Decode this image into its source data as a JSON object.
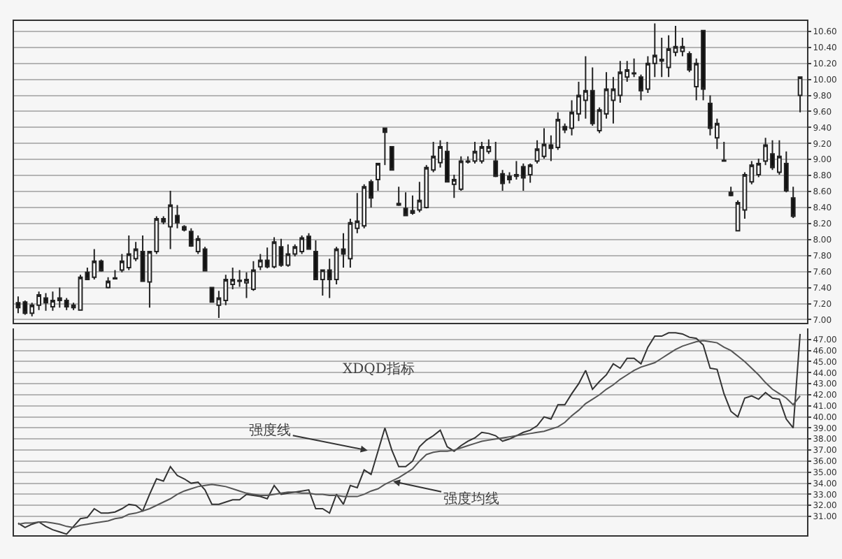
{
  "chart_data": [
    {
      "type": "candlestick",
      "categories": [
        null,
        null,
        null,
        null,
        null,
        null,
        null,
        null,
        null,
        null,
        null,
        null,
        null,
        null,
        null,
        null,
        null,
        null,
        null,
        null,
        null,
        null,
        null,
        null,
        null,
        null,
        null,
        null,
        null,
        null,
        null,
        null,
        null,
        null,
        null,
        null,
        null,
        null,
        null,
        null,
        null,
        null,
        null,
        null,
        null,
        null,
        null,
        null,
        null,
        null,
        null,
        null,
        null,
        null,
        null,
        null,
        null,
        null,
        null,
        null,
        null,
        null,
        null,
        null,
        null,
        null,
        null,
        null,
        null,
        null,
        null,
        null,
        null,
        null,
        null,
        null,
        null,
        null,
        null,
        null,
        null,
        null,
        null,
        null,
        null,
        null,
        null,
        null,
        null,
        null,
        null,
        null,
        null,
        null,
        null,
        null,
        null,
        null,
        null,
        null,
        null,
        null,
        null,
        null,
        null,
        null,
        null,
        null,
        null,
        null,
        null,
        null,
        null,
        null
      ],
      "ohlc": [
        [
          7.21,
          7.29,
          7.08,
          7.15
        ],
        [
          7.22,
          7.24,
          7.06,
          7.08
        ],
        [
          7.08,
          7.21,
          7.04,
          7.18
        ],
        [
          7.18,
          7.35,
          7.12,
          7.31
        ],
        [
          7.27,
          7.33,
          7.11,
          7.21
        ],
        [
          7.16,
          7.35,
          7.11,
          7.24
        ],
        [
          7.24,
          7.4,
          7.15,
          7.27
        ],
        [
          7.24,
          7.27,
          7.12,
          7.16
        ],
        [
          7.18,
          7.21,
          7.12,
          7.15
        ],
        [
          7.12,
          7.56,
          7.11,
          7.53
        ],
        [
          7.59,
          7.65,
          7.5,
          7.5
        ],
        [
          7.53,
          7.88,
          7.5,
          7.73
        ],
        [
          7.73,
          7.75,
          7.6,
          7.61
        ],
        [
          7.4,
          7.53,
          7.39,
          7.48
        ],
        [
          7.52,
          7.62,
          7.5,
          7.51
        ],
        [
          7.62,
          7.82,
          7.59,
          7.73
        ],
        [
          7.65,
          8.05,
          7.62,
          7.82
        ],
        [
          7.76,
          7.97,
          7.73,
          7.88
        ],
        [
          7.85,
          8.05,
          7.47,
          7.48
        ],
        [
          7.47,
          7.85,
          7.15,
          7.85
        ],
        [
          7.85,
          8.29,
          7.82,
          8.26
        ],
        [
          8.26,
          8.29,
          8.19,
          8.22
        ],
        [
          8.16,
          8.61,
          7.88,
          8.43
        ],
        [
          8.3,
          8.43,
          8.14,
          8.21
        ],
        [
          8.16,
          8.18,
          8.1,
          8.12
        ],
        [
          8.1,
          8.14,
          7.91,
          7.92
        ],
        [
          7.85,
          8.05,
          7.82,
          8.01
        ],
        [
          7.88,
          7.91,
          7.61,
          7.61
        ],
        [
          7.4,
          7.41,
          7.21,
          7.22
        ],
        [
          7.18,
          7.36,
          7.02,
          7.27
        ],
        [
          7.24,
          7.56,
          7.18,
          7.5
        ],
        [
          7.44,
          7.65,
          7.38,
          7.5
        ],
        [
          7.48,
          7.62,
          7.41,
          7.49
        ],
        [
          7.46,
          7.59,
          7.27,
          7.5
        ],
        [
          7.38,
          7.73,
          7.36,
          7.62
        ],
        [
          7.66,
          7.82,
          7.62,
          7.74
        ],
        [
          7.74,
          7.9,
          7.64,
          7.66
        ],
        [
          7.66,
          8.03,
          7.64,
          7.97
        ],
        [
          7.91,
          8.01,
          7.66,
          7.68
        ],
        [
          7.68,
          7.94,
          7.66,
          7.82
        ],
        [
          7.82,
          7.94,
          7.79,
          7.91
        ],
        [
          7.85,
          8.05,
          7.82,
          8.02
        ],
        [
          8.04,
          8.08,
          7.88,
          7.88
        ],
        [
          7.85,
          7.99,
          7.5,
          7.5
        ],
        [
          7.5,
          7.62,
          7.3,
          7.62
        ],
        [
          7.62,
          7.76,
          7.27,
          7.5
        ],
        [
          7.5,
          7.91,
          7.44,
          7.88
        ],
        [
          7.88,
          8.08,
          7.65,
          7.82
        ],
        [
          7.76,
          8.26,
          7.65,
          8.21
        ],
        [
          8.14,
          8.58,
          8.08,
          8.23
        ],
        [
          8.17,
          8.69,
          8.14,
          8.66
        ],
        [
          8.72,
          8.75,
          8.4,
          8.52
        ],
        [
          8.75,
          8.95,
          8.61,
          8.95
        ],
        [
          9.39,
          9.39,
          8.93,
          9.34
        ],
        [
          9.16,
          9.16,
          8.87,
          8.87
        ],
        [
          8.45,
          8.66,
          8.42,
          8.43
        ],
        [
          8.39,
          8.59,
          8.29,
          8.3
        ],
        [
          8.33,
          8.55,
          8.31,
          8.36
        ],
        [
          8.37,
          8.72,
          8.34,
          8.49
        ],
        [
          8.4,
          8.93,
          8.39,
          8.9
        ],
        [
          8.87,
          9.22,
          8.84,
          9.04
        ],
        [
          8.96,
          9.24,
          8.9,
          9.16
        ],
        [
          9.1,
          9.22,
          8.72,
          8.72
        ],
        [
          8.69,
          8.81,
          8.52,
          8.75
        ],
        [
          8.63,
          9.04,
          8.61,
          8.98
        ],
        [
          8.97,
          9.04,
          8.95,
          8.98
        ],
        [
          8.98,
          9.22,
          8.95,
          9.1
        ],
        [
          8.98,
          9.22,
          8.95,
          9.16
        ],
        [
          9.1,
          9.25,
          9.07,
          9.16
        ],
        [
          8.98,
          9.22,
          8.78,
          8.79
        ],
        [
          8.82,
          8.87,
          8.61,
          8.7
        ],
        [
          8.79,
          8.84,
          8.7,
          8.75
        ],
        [
          8.79,
          8.98,
          8.75,
          8.81
        ],
        [
          8.91,
          8.95,
          8.61,
          8.77
        ],
        [
          8.81,
          8.95,
          8.71,
          8.93
        ],
        [
          8.98,
          9.24,
          8.95,
          9.13
        ],
        [
          9.04,
          9.39,
          9.01,
          9.19
        ],
        [
          9.18,
          9.3,
          8.98,
          9.14
        ],
        [
          9.15,
          9.59,
          9.12,
          9.5
        ],
        [
          9.41,
          9.45,
          9.33,
          9.37
        ],
        [
          9.39,
          9.74,
          9.3,
          9.59
        ],
        [
          9.57,
          9.97,
          9.48,
          9.8
        ],
        [
          9.74,
          10.29,
          9.51,
          9.86
        ],
        [
          9.86,
          10.15,
          9.42,
          9.45
        ],
        [
          9.36,
          9.65,
          9.33,
          9.62
        ],
        [
          9.57,
          10.09,
          9.51,
          9.88
        ],
        [
          9.74,
          10.03,
          9.45,
          9.88
        ],
        [
          9.8,
          10.23,
          9.71,
          10.09
        ],
        [
          10.03,
          10.23,
          9.97,
          10.12
        ],
        [
          10.08,
          10.26,
          10.03,
          10.07
        ],
        [
          10.03,
          10.06,
          9.74,
          9.86
        ],
        [
          9.88,
          10.29,
          9.83,
          10.2
        ],
        [
          10.2,
          10.7,
          10.03,
          10.3
        ],
        [
          10.23,
          10.52,
          10.03,
          10.25
        ],
        [
          10.15,
          10.55,
          10.03,
          10.38
        ],
        [
          10.34,
          10.67,
          10.29,
          10.41
        ],
        [
          10.35,
          10.52,
          10.29,
          10.41
        ],
        [
          10.32,
          10.35,
          10.09,
          10.12
        ],
        [
          9.91,
          10.26,
          9.74,
          10.2
        ],
        [
          10.61,
          10.61,
          9.74,
          9.88
        ],
        [
          9.7,
          9.8,
          9.3,
          9.39
        ],
        [
          9.27,
          9.51,
          9.13,
          9.45
        ],
        [
          8.99,
          9.22,
          8.98,
          8.98
        ],
        [
          8.59,
          8.66,
          8.54,
          8.55
        ],
        [
          8.11,
          8.49,
          8.11,
          8.46
        ],
        [
          8.37,
          8.84,
          8.26,
          8.81
        ],
        [
          8.72,
          8.98,
          8.69,
          8.93
        ],
        [
          8.81,
          9.01,
          8.78,
          8.95
        ],
        [
          8.98,
          9.27,
          8.93,
          9.18
        ],
        [
          9.07,
          9.24,
          8.87,
          8.9
        ],
        [
          8.84,
          9.24,
          8.81,
          9.04
        ],
        [
          8.95,
          9.1,
          8.59,
          8.61
        ],
        [
          8.52,
          8.66,
          8.27,
          8.29
        ],
        [
          9.8,
          10.03,
          9.59,
          10.03
        ]
      ],
      "ylim": [
        6.96,
        10.73
      ],
      "yticks": [
        {
          "value": 7.0,
          "label": "7.00"
        },
        {
          "value": 7.2,
          "label": "7.20"
        },
        {
          "value": 7.4,
          "label": "7.40"
        },
        {
          "value": 7.6,
          "label": "7.60"
        },
        {
          "value": 7.8,
          "label": "7.80"
        },
        {
          "value": 8.0,
          "label": "8.00"
        },
        {
          "value": 8.2,
          "label": "8.20"
        },
        {
          "value": 8.4,
          "label": "8.40"
        },
        {
          "value": 8.6,
          "label": "8.60"
        },
        {
          "value": 8.8,
          "label": "8.80"
        },
        {
          "value": 9.0,
          "label": "9.00"
        },
        {
          "value": 9.2,
          "label": "9.20"
        },
        {
          "value": 9.4,
          "label": "9.40"
        },
        {
          "value": 9.6,
          "label": "9.60"
        },
        {
          "value": 9.8,
          "label": "9.80"
        },
        {
          "value": 10.0,
          "label": "10.00"
        },
        {
          "value": 10.2,
          "label": "10.20"
        },
        {
          "value": 10.4,
          "label": "10.40"
        },
        {
          "value": 10.6,
          "label": "10.60"
        }
      ],
      "grid": "y",
      "tick_labels": "y"
    },
    {
      "type": "line",
      "categories": [
        null,
        null,
        null,
        null,
        null,
        null,
        null,
        null,
        null,
        null,
        null,
        null,
        null,
        null,
        null,
        null,
        null,
        null,
        null,
        null,
        null,
        null,
        null,
        null,
        null,
        null,
        null,
        null,
        null,
        null,
        null,
        null,
        null,
        null,
        null,
        null,
        null,
        null,
        null,
        null,
        null,
        null,
        null,
        null,
        null,
        null,
        null,
        null,
        null,
        null,
        null,
        null,
        null,
        null,
        null,
        null,
        null,
        null,
        null,
        null,
        null,
        null,
        null,
        null,
        null,
        null,
        null,
        null,
        null,
        null,
        null,
        null,
        null,
        null,
        null,
        null,
        null,
        null,
        null,
        null,
        null,
        null,
        null,
        null,
        null,
        null,
        null,
        null,
        null,
        null,
        null,
        null,
        null,
        null,
        null,
        null,
        null,
        null,
        null,
        null,
        null,
        null,
        null,
        null,
        null,
        null,
        null,
        null,
        null,
        null,
        null,
        null,
        null,
        null
      ],
      "series": [
        {
          "color": "#333333",
          "values": [
            30.4,
            30.0,
            30.3,
            30.5,
            30.1,
            29.8,
            29.6,
            29.4,
            30.1,
            30.8,
            30.9,
            31.7,
            31.3,
            31.3,
            31.4,
            31.7,
            32.1,
            32.0,
            31.5,
            33.0,
            34.4,
            34.2,
            35.5,
            34.7,
            34.4,
            34.0,
            34.1,
            33.4,
            32.1,
            32.1,
            32.3,
            32.5,
            32.5,
            33.0,
            32.9,
            32.8,
            32.6,
            33.8,
            33.0,
            33.1,
            33.2,
            33.3,
            33.4,
            31.7,
            31.7,
            31.3,
            33.0,
            32.1,
            33.8,
            33.6,
            35.2,
            34.8,
            36.9,
            39.0,
            37.0,
            35.5,
            35.5,
            36.0,
            37.3,
            37.9,
            38.3,
            38.8,
            37.3,
            36.9,
            37.4,
            37.8,
            38.1,
            38.6,
            38.5,
            38.3,
            37.8,
            38.0,
            38.3,
            38.6,
            38.8,
            39.2,
            40.0,
            39.8,
            41.1,
            41.1,
            42.1,
            43.0,
            44.2,
            42.5,
            43.2,
            43.8,
            44.8,
            44.4,
            45.3,
            45.3,
            44.8,
            46.3,
            47.3,
            47.3,
            47.6,
            47.6,
            47.5,
            47.2,
            47.1,
            46.5,
            44.4,
            44.3,
            42.1,
            40.5,
            40.0,
            41.7,
            41.9,
            41.6,
            42.2,
            41.7,
            41.6,
            39.8,
            39.0,
            47.5
          ]
        },
        {
          "color": "#555555",
          "values": [
            30.3,
            30.4,
            30.4,
            30.5,
            30.5,
            30.4,
            30.3,
            30.1,
            30.0,
            30.2,
            30.3,
            30.4,
            30.5,
            30.6,
            30.8,
            30.9,
            31.2,
            31.3,
            31.5,
            31.7,
            32.0,
            32.3,
            32.6,
            33.0,
            33.3,
            33.5,
            33.7,
            33.8,
            33.9,
            33.8,
            33.7,
            33.5,
            33.3,
            33.1,
            33.0,
            32.9,
            32.9,
            33.0,
            33.1,
            33.2,
            33.2,
            33.1,
            33.1,
            33.0,
            33.0,
            32.9,
            32.9,
            32.8,
            32.8,
            32.8,
            33.0,
            33.3,
            33.5,
            33.9,
            34.2,
            34.5,
            34.9,
            35.3,
            36.0,
            36.6,
            36.8,
            36.9,
            36.9,
            37.0,
            37.2,
            37.4,
            37.6,
            37.8,
            37.9,
            38.0,
            38.1,
            38.2,
            38.3,
            38.4,
            38.5,
            38.6,
            38.7,
            38.9,
            39.1,
            39.5,
            40.1,
            40.6,
            41.2,
            41.6,
            42.0,
            42.5,
            42.9,
            43.4,
            43.8,
            44.2,
            44.5,
            44.7,
            44.9,
            45.3,
            45.7,
            46.1,
            46.4,
            46.6,
            46.8,
            46.9,
            46.8,
            46.7,
            46.3,
            46.0,
            45.5,
            45.0,
            44.4,
            43.8,
            43.1,
            42.5,
            42.1,
            41.7,
            41.1,
            41.9
          ]
        }
      ],
      "ylim": [
        29.3,
        48.0
      ],
      "yticks": [
        {
          "value": 31,
          "label": "31.00"
        },
        {
          "value": 32,
          "label": "32.00"
        },
        {
          "value": 33,
          "label": "33.00"
        },
        {
          "value": 34,
          "label": "34.00"
        },
        {
          "value": 35,
          "label": "35.00"
        },
        {
          "value": 36,
          "label": "36.00"
        },
        {
          "value": 37,
          "label": "37.00"
        },
        {
          "value": 38,
          "label": "38.00"
        },
        {
          "value": 39,
          "label": "39.00"
        },
        {
          "value": 40,
          "label": "40.00"
        },
        {
          "value": 41,
          "label": "41.00"
        },
        {
          "value": 42,
          "label": "42.00"
        },
        {
          "value": 43,
          "label": "43.00"
        },
        {
          "value": 44,
          "label": "44.00"
        },
        {
          "value": 45,
          "label": "45.00"
        },
        {
          "value": 46,
          "label": "46.00"
        },
        {
          "value": 47,
          "label": "47.00"
        }
      ],
      "grid": "y",
      "tick_labels": "y",
      "annotations": [
        "XDQD指标",
        "强度线",
        "强度均线"
      ]
    }
  ]
}
